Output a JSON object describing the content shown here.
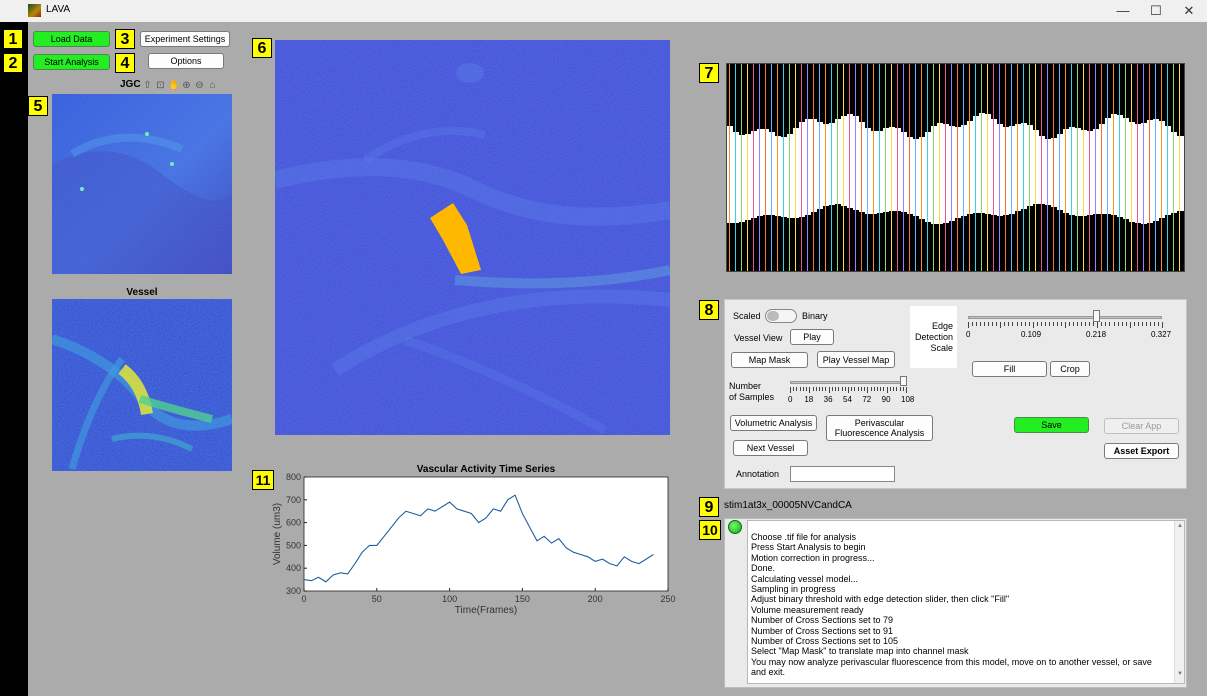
{
  "window": {
    "title": "LAVA",
    "minimize": "—",
    "maximize": "☐",
    "close": "✕"
  },
  "labels": {
    "l1": "1",
    "l2": "2",
    "l3": "3",
    "l4": "4",
    "l5": "5",
    "l6": "6",
    "l7": "7",
    "l8": "8",
    "l9": "9",
    "l10": "10",
    "l11": "11"
  },
  "buttons": {
    "load_data": "Load Data",
    "start_analysis": "Start Analysis",
    "experiment_settings": "Experiment Settings",
    "options": "Options"
  },
  "toolbar": {
    "jgc": "JGC"
  },
  "vessel_title": "Vessel",
  "controls": {
    "scaled": "Scaled",
    "binary": "Binary",
    "vessel_view": "Vessel View",
    "play": "Play",
    "map_mask": "Map Mask",
    "play_vessel_map": "Play Vessel Map",
    "edge_detection_scale": [
      "Edge",
      "Detection",
      "Scale"
    ],
    "edge_ticks": [
      "0",
      "0.109",
      "0.218",
      "0.327"
    ],
    "edge_value_fraction": 0.66,
    "number_of_samples": [
      "Number",
      "of Samples"
    ],
    "sample_ticks": [
      "0",
      "18",
      "36",
      "54",
      "72",
      "90",
      "108"
    ],
    "samples_value_fraction": 0.97,
    "fill": "Fill",
    "crop": "Crop",
    "volumetric_analysis": "Volumetric Analysis",
    "perivascular": [
      "Perivascular",
      "Fluorescence Analysis"
    ],
    "next_vessel": "Next Vessel",
    "save": "Save",
    "clear_app": "Clear App",
    "asset_export": "Asset Export",
    "annotation": "Annotation",
    "annotation_value": ""
  },
  "filename": "stim1at3x_00005NVCandCA",
  "log": [
    "Choose .tif file for analysis",
    "Press Start Analysis to begin",
    "Motion correction in progress...",
    "Done.",
    "Calculating vessel model...",
    "Sampling in progress",
    "Adjust binary threshold with edge detection slider, then click \"Fill\"",
    "Volume measurement ready",
    "Number of Cross Sections set to 79",
    "Number of Cross Sections set to 91",
    "Number of Cross Sections set to 105",
    "Select \"Map Mask\" to translate map into channel mask",
    "You may now analyze perivascular fluorescence from this model, move on to another vessel, or save",
    "and exit."
  ],
  "chart_data": {
    "type": "line",
    "title": "Vascular Activity Time Series",
    "xlabel": "Time(Frames)",
    "ylabel": "Volume (um3)",
    "xlim": [
      0,
      250
    ],
    "ylim": [
      300,
      800
    ],
    "xticks": [
      "0",
      "50",
      "100",
      "150",
      "200",
      "250"
    ],
    "yticks": [
      "300",
      "400",
      "500",
      "600",
      "700",
      "800"
    ],
    "color": "#1f5f9f",
    "x": [
      0,
      5,
      10,
      15,
      20,
      25,
      30,
      35,
      40,
      45,
      50,
      55,
      60,
      65,
      70,
      75,
      80,
      85,
      90,
      95,
      100,
      105,
      110,
      115,
      120,
      125,
      130,
      135,
      140,
      145,
      150,
      155,
      160,
      165,
      170,
      175,
      180,
      185,
      190,
      195,
      200,
      205,
      210,
      215,
      220,
      225,
      230,
      235,
      240
    ],
    "y": [
      350,
      345,
      360,
      340,
      370,
      380,
      375,
      420,
      470,
      500,
      500,
      540,
      580,
      620,
      650,
      640,
      630,
      660,
      650,
      670,
      690,
      660,
      650,
      640,
      600,
      620,
      660,
      650,
      700,
      720,
      640,
      580,
      520,
      540,
      510,
      530,
      490,
      470,
      460,
      450,
      430,
      440,
      420,
      410,
      450,
      430,
      420,
      440,
      460
    ]
  }
}
